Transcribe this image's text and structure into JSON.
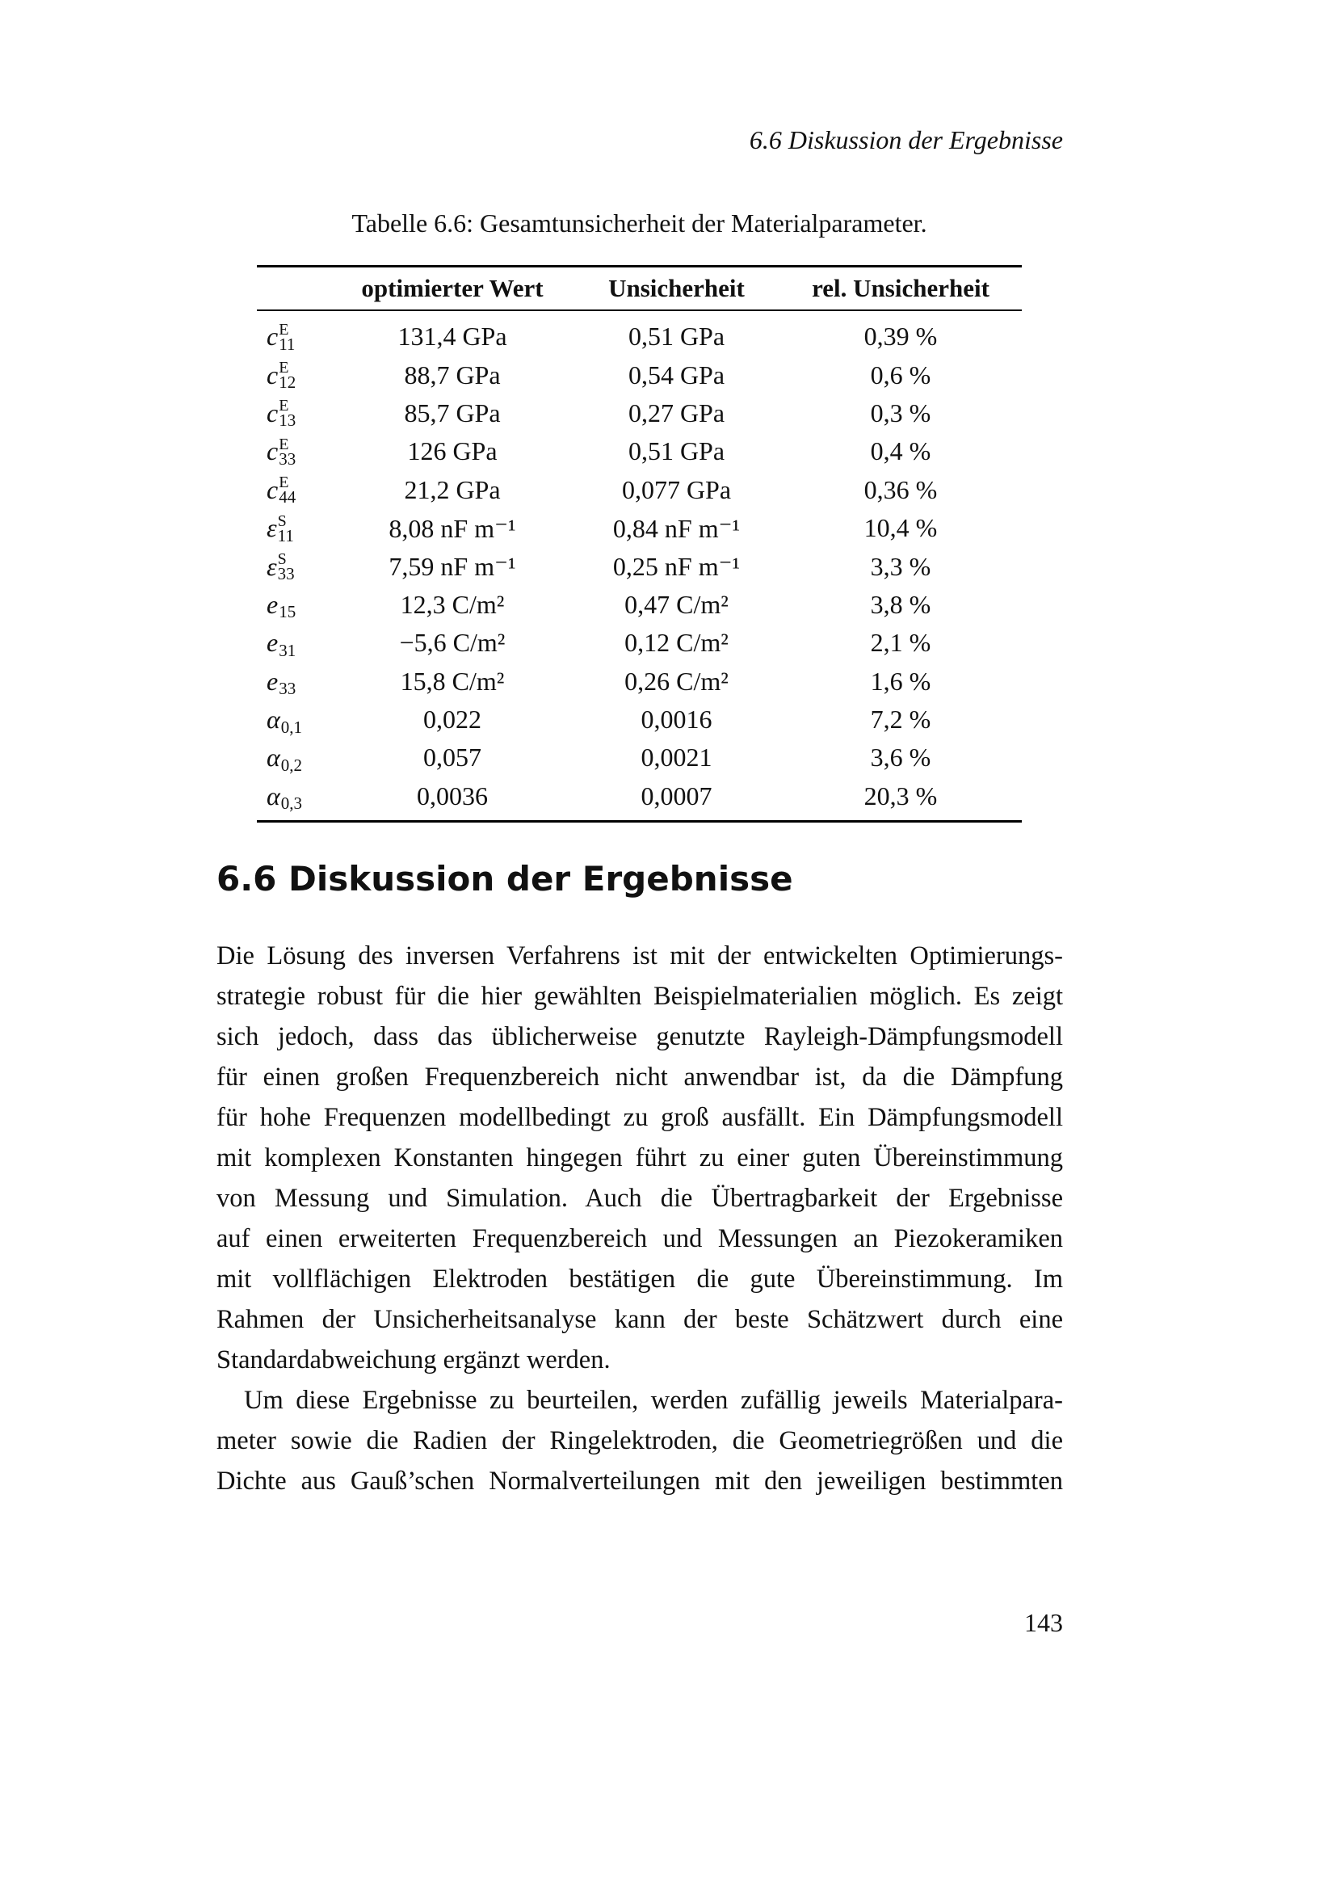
{
  "running_header": "6.6  Diskussion der Ergebnisse",
  "table": {
    "caption": "Tabelle 6.6: Gesamtunsicherheit der Materialparameter.",
    "headers": [
      "",
      "optimierter Wert",
      "Unsicherheit",
      "rel. Unsicherheit"
    ],
    "rows": [
      {
        "base": "c",
        "sup": "E",
        "sub": "11",
        "value": "131,4 GPa",
        "uncertainty": "0,51 GPa",
        "relative": "0,39 %"
      },
      {
        "base": "c",
        "sup": "E",
        "sub": "12",
        "value": "88,7 GPa",
        "uncertainty": "0,54 GPa",
        "relative": "0,6 %"
      },
      {
        "base": "c",
        "sup": "E",
        "sub": "13",
        "value": "85,7 GPa",
        "uncertainty": "0,27 GPa",
        "relative": "0,3 %"
      },
      {
        "base": "c",
        "sup": "E",
        "sub": "33",
        "value": "126 GPa",
        "uncertainty": "0,51 GPa",
        "relative": "0,4 %"
      },
      {
        "base": "c",
        "sup": "E",
        "sub": "44",
        "value": "21,2 GPa",
        "uncertainty": "0,077 GPa",
        "relative": "0,36 %"
      },
      {
        "base": "ε",
        "sup": "S",
        "sub": "11",
        "value": "8,08 nF m⁻¹",
        "uncertainty": "0,84 nF m⁻¹",
        "relative": "10,4 %"
      },
      {
        "base": "ε",
        "sup": "S",
        "sub": "33",
        "value": "7,59 nF m⁻¹",
        "uncertainty": "0,25 nF m⁻¹",
        "relative": "3,3 %"
      },
      {
        "base": "e",
        "sup": "",
        "sub": "15",
        "value": "12,3 C/m²",
        "uncertainty": "0,47 C/m²",
        "relative": "3,8 %"
      },
      {
        "base": "e",
        "sup": "",
        "sub": "31",
        "value": "−5,6 C/m²",
        "uncertainty": "0,12 C/m²",
        "relative": "2,1 %"
      },
      {
        "base": "e",
        "sup": "",
        "sub": "33",
        "value": "15,8 C/m²",
        "uncertainty": "0,26 C/m²",
        "relative": "1,6 %"
      },
      {
        "base": "α",
        "sup": "",
        "sub": "0,1",
        "value": "0,022",
        "uncertainty": "0,0016",
        "relative": "7,2 %"
      },
      {
        "base": "α",
        "sup": "",
        "sub": "0,2",
        "value": "0,057",
        "uncertainty": "0,0021",
        "relative": "3,6 %"
      },
      {
        "base": "α",
        "sup": "",
        "sub": "0,3",
        "value": "0,0036",
        "uncertainty": "0,0007",
        "relative": "20,3 %"
      }
    ]
  },
  "section": {
    "heading": "6.6  Diskussion der Ergebnisse",
    "paragraphs": [
      [
        "Die Lösung des inversen Verfahrens ist mit der entwickelten Optimierungs-",
        "strategie robust für die hier gewählten Beispielmaterialien möglich. Es zeigt",
        "sich jedoch, dass das üblicherweise genutzte Rayleigh-Dämpfungsmodell",
        "für einen großen Frequenzbereich nicht anwendbar ist, da die Dämpfung",
        "für hohe Frequenzen modellbedingt zu groß ausfällt. Ein Dämpfungsmodell",
        "mit komplexen Konstanten hingegen führt zu einer guten Übereinstimmung",
        "von Messung und Simulation. Auch die Übertragbarkeit der Ergebnisse",
        "auf einen erweiterten Frequenzbereich und Messungen an Piezokeramiken",
        "mit vollflächigen Elektroden bestätigen die gute Übereinstimmung. Im",
        "Rahmen der Unsicherheitsanalyse kann der beste Schätzwert durch eine",
        "Standardabweichung ergänzt werden."
      ],
      [
        "Um diese Ergebnisse zu beurteilen, werden zufällig jeweils Materialpara-",
        "meter sowie die Radien der Ringelektroden, die Geometriegrößen und die",
        "Dichte aus Gauß’schen Normalverteilungen mit den jeweiligen bestimmten"
      ]
    ]
  },
  "page_number": "143"
}
